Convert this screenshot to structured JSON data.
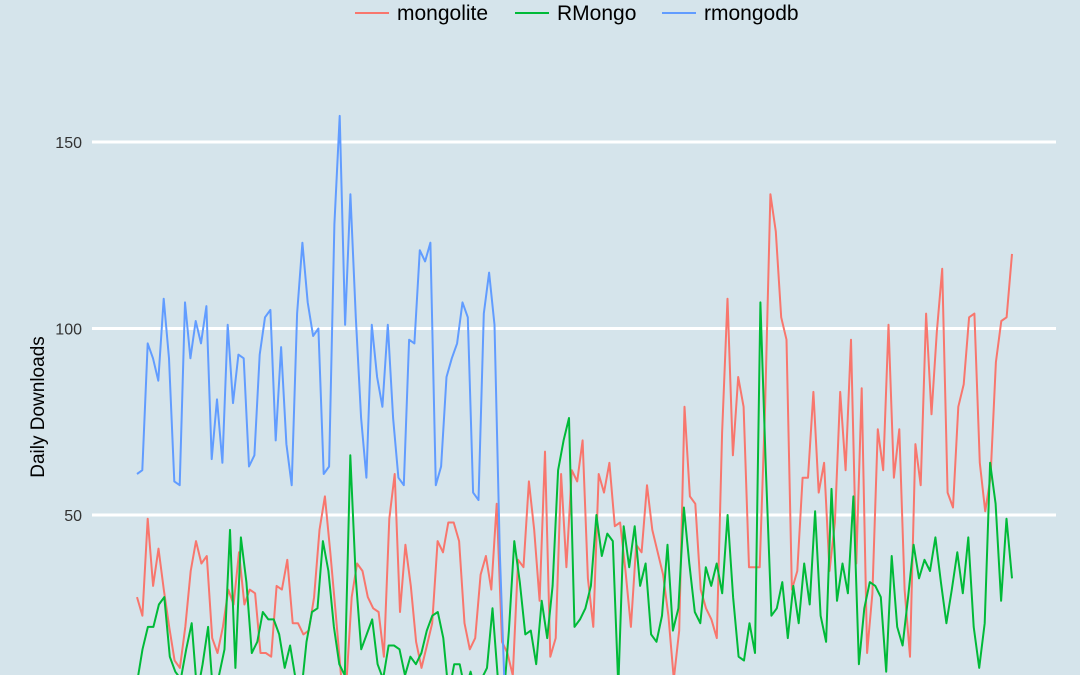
{
  "chart_data": {
    "type": "line",
    "title": "",
    "xlabel": "",
    "ylabel": "Daily Downloads",
    "ylim": [
      -2,
      162
    ],
    "y_ticks": [
      50,
      100,
      150
    ],
    "grid": "horizontal",
    "legend_position": "top",
    "background": "#d5e4eb",
    "series": [
      {
        "name": "mongolite",
        "color": "#f8766d",
        "values": [
          28,
          23,
          49,
          31,
          41,
          30,
          20,
          11,
          9,
          20,
          35,
          43,
          37,
          39,
          17,
          13,
          20,
          30,
          26,
          40,
          26,
          30,
          29,
          13,
          13,
          12,
          31,
          30,
          38,
          21,
          21,
          18,
          19,
          28,
          46,
          55,
          40,
          24,
          7,
          5,
          28,
          37,
          35,
          28,
          25,
          24,
          12,
          49,
          61,
          24,
          42,
          31,
          16,
          9,
          15,
          21,
          43,
          40,
          48,
          48,
          43,
          21,
          14,
          17,
          34,
          39,
          30,
          53,
          16,
          13,
          7,
          38,
          36,
          59,
          46,
          27,
          67,
          12,
          17,
          61,
          36,
          62,
          59,
          70,
          33,
          20,
          61,
          56,
          64,
          47,
          48,
          35,
          20,
          42,
          40,
          58,
          46,
          40,
          34,
          23,
          6,
          19,
          79,
          55,
          53,
          30,
          25,
          22,
          17,
          72,
          108,
          66,
          87,
          79,
          36,
          36,
          36,
          79,
          136,
          126,
          103,
          97,
          30,
          35,
          60,
          60,
          83,
          56,
          64,
          35,
          48,
          83,
          62,
          97,
          37,
          84,
          13,
          29,
          73,
          62,
          101,
          60,
          73,
          30,
          12,
          69,
          58,
          104,
          77,
          99,
          116,
          56,
          52,
          79,
          85,
          103,
          104,
          64,
          51,
          60,
          91,
          102,
          103,
          120
        ],
        "note_values": "mongolite daily downloads"
      },
      {
        "name": "RMongo",
        "color": "#00ba38",
        "values": [
          5,
          14,
          20,
          20,
          26,
          28,
          12,
          8,
          6,
          14,
          21,
          2,
          10,
          20,
          0,
          7,
          14,
          46,
          9,
          44,
          32,
          13,
          16,
          24,
          22,
          22,
          18,
          9,
          15,
          6,
          2,
          16,
          24,
          25,
          43,
          35,
          20,
          10,
          7,
          66,
          33,
          14,
          18,
          22,
          10,
          6,
          15,
          15,
          14,
          7,
          12,
          10,
          13,
          19,
          23,
          24,
          17,
          2,
          10,
          10,
          3,
          8,
          2,
          6,
          9,
          25,
          6,
          0,
          19,
          43,
          32,
          18,
          19,
          10,
          27,
          17,
          31,
          62,
          70,
          76,
          20,
          22,
          25,
          31,
          50,
          39,
          45,
          43,
          4,
          47,
          36,
          47,
          31,
          37,
          18,
          16,
          23,
          42,
          19,
          25,
          52,
          37,
          24,
          21,
          36,
          31,
          37,
          29,
          50,
          28,
          12,
          11,
          21,
          13,
          107,
          62,
          23,
          25,
          32,
          17,
          31,
          21,
          37,
          26,
          51,
          23,
          16,
          57,
          27,
          37,
          29,
          55,
          10,
          25,
          32,
          31,
          28,
          8,
          39,
          20,
          15,
          28,
          42,
          33,
          38,
          35,
          44,
          32,
          21,
          30,
          40,
          29,
          44,
          20,
          9,
          21,
          64,
          53,
          27,
          49,
          33
        ],
        "note_values": "RMongo daily downloads"
      },
      {
        "name": "rmongodb",
        "color": "#619cff",
        "values": [
          61,
          62,
          96,
          92,
          86,
          108,
          92,
          59,
          58,
          107,
          92,
          102,
          96,
          106,
          65,
          81,
          64,
          101,
          80,
          93,
          92,
          63,
          66,
          93,
          103,
          105,
          70,
          95,
          69,
          58,
          104,
          123,
          107,
          98,
          100,
          61,
          63,
          128,
          157,
          101,
          136,
          103,
          76,
          60,
          101,
          87,
          79,
          101,
          76,
          60,
          58,
          97,
          96,
          121,
          118,
          123,
          58,
          63,
          87,
          92,
          96,
          107,
          103,
          56,
          54,
          104,
          115,
          101,
          40,
          0,
          0,
          0,
          0,
          0,
          0,
          0,
          0,
          0,
          0,
          0,
          0,
          0,
          0,
          0,
          0,
          0,
          0,
          0,
          0,
          0,
          0,
          0,
          0,
          0,
          0,
          0,
          0,
          0,
          0,
          0,
          0,
          0,
          0,
          0,
          0,
          0,
          0,
          0,
          0,
          0,
          0,
          0,
          0,
          0,
          0,
          0,
          0,
          0,
          0,
          0,
          0,
          0,
          0,
          0,
          0,
          0,
          0,
          0,
          0,
          0,
          0,
          0,
          0,
          0,
          0,
          0,
          0,
          0,
          0,
          0,
          0,
          0,
          0,
          0,
          0,
          0,
          0,
          0,
          0,
          0,
          0,
          0,
          0,
          0,
          0,
          0,
          0,
          0,
          0,
          0,
          0,
          0,
          0,
          0,
          0
        ]
      }
    ]
  }
}
